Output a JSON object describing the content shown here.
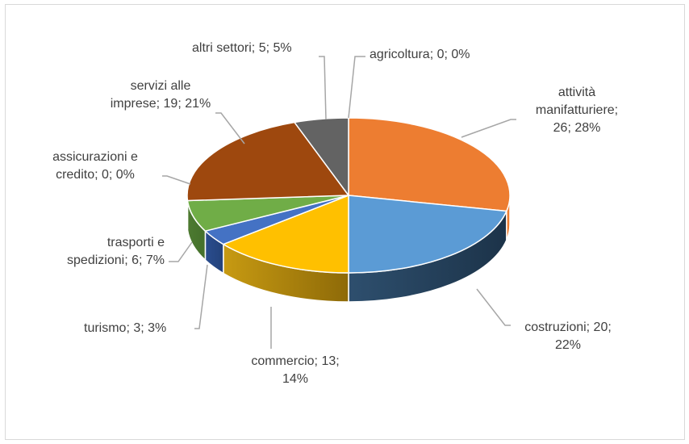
{
  "chart_data": {
    "type": "pie",
    "title": "",
    "categories": [
      "agricoltura",
      "attività manifatturiere",
      "costruzioni",
      "commercio",
      "turismo",
      "trasporti e spedizioni",
      "assicurazioni e credito",
      "servizi alle imprese",
      "altri settori"
    ],
    "values": [
      0,
      26,
      20,
      13,
      3,
      6,
      0,
      19,
      5
    ],
    "percents": [
      "0%",
      "28%",
      "22%",
      "14%",
      "3%",
      "7%",
      "0%",
      "21%",
      "5%"
    ],
    "colors": [
      "#4472c4",
      "#ed7d31",
      "#5b9bd5",
      "#ffc000",
      "#4472c4",
      "#70ad47",
      "#264478",
      "#9e480e",
      "#636363"
    ],
    "labels": {
      "agricoltura": [
        "agricoltura; 0; 0%"
      ],
      "manifatturiere": [
        "attività",
        "manifatturiere;",
        "26; 28%"
      ],
      "costruzioni": [
        "costruzioni; 20;",
        "22%"
      ],
      "commercio": [
        "commercio; 13;",
        "14%"
      ],
      "turismo": [
        "turismo; 3; 3%"
      ],
      "trasporti": [
        "trasporti e",
        "spedizioni; 6; 7%"
      ],
      "assicurazioni": [
        "assicurazioni e",
        "credito; 0; 0%"
      ],
      "servizi": [
        "servizi alle",
        "imprese; 19; 21%"
      ],
      "altri": [
        "altri settori; 5; 5%"
      ]
    }
  }
}
